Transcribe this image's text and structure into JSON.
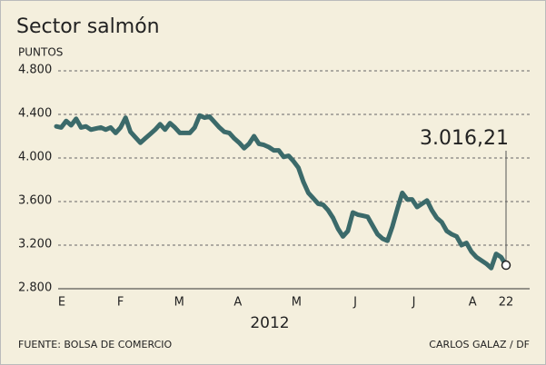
{
  "chart_data": {
    "type": "line",
    "title": "Sector salmón",
    "y_label": "PUNTOS",
    "x_labels": [
      "E",
      "F",
      "M",
      "A",
      "M",
      "J",
      "J",
      "A",
      "22"
    ],
    "x_title": "2012",
    "series": [
      {
        "color": "#3b6a6a",
        "values": [
          4290,
          4280,
          4340,
          4300,
          4360,
          4280,
          4290,
          4260,
          4270,
          4280,
          4260,
          4280,
          4230,
          4280,
          4370,
          4240,
          4190,
          4140,
          4180,
          4220,
          4260,
          4310,
          4260,
          4320,
          4280,
          4230,
          4230,
          4230,
          4280,
          4390,
          4370,
          4380,
          4330,
          4280,
          4240,
          4230,
          4180,
          4140,
          4090,
          4130,
          4200,
          4130,
          4120,
          4100,
          4070,
          4070,
          4010,
          4020,
          3970,
          3910,
          3780,
          3680,
          3630,
          3580,
          3570,
          3520,
          3450,
          3350,
          3280,
          3330,
          3500,
          3480,
          3470,
          3460,
          3380,
          3300,
          3260,
          3240,
          3370,
          3530,
          3680,
          3620,
          3620,
          3550,
          3580,
          3610,
          3520,
          3450,
          3410,
          3330,
          3300,
          3280,
          3200,
          3220,
          3140,
          3090,
          3060,
          3030,
          2990,
          3120,
          3090,
          3016.21
        ]
      }
    ],
    "annotation": "3.016,21",
    "ylim": [
      2800,
      4800
    ],
    "yticks": [
      {
        "value": 2800,
        "label": "2.800"
      },
      {
        "value": 3200,
        "label": "3.200"
      },
      {
        "value": 3600,
        "label": "3.600"
      },
      {
        "value": 4000,
        "label": "4.000"
      },
      {
        "value": 4400,
        "label": "4.400"
      },
      {
        "value": 4800,
        "label": "4.800"
      }
    ],
    "grid": true,
    "source": "FUENTE: BOLSA DE COMERCIO",
    "credit": "CARLOS GALAZ / DF"
  }
}
